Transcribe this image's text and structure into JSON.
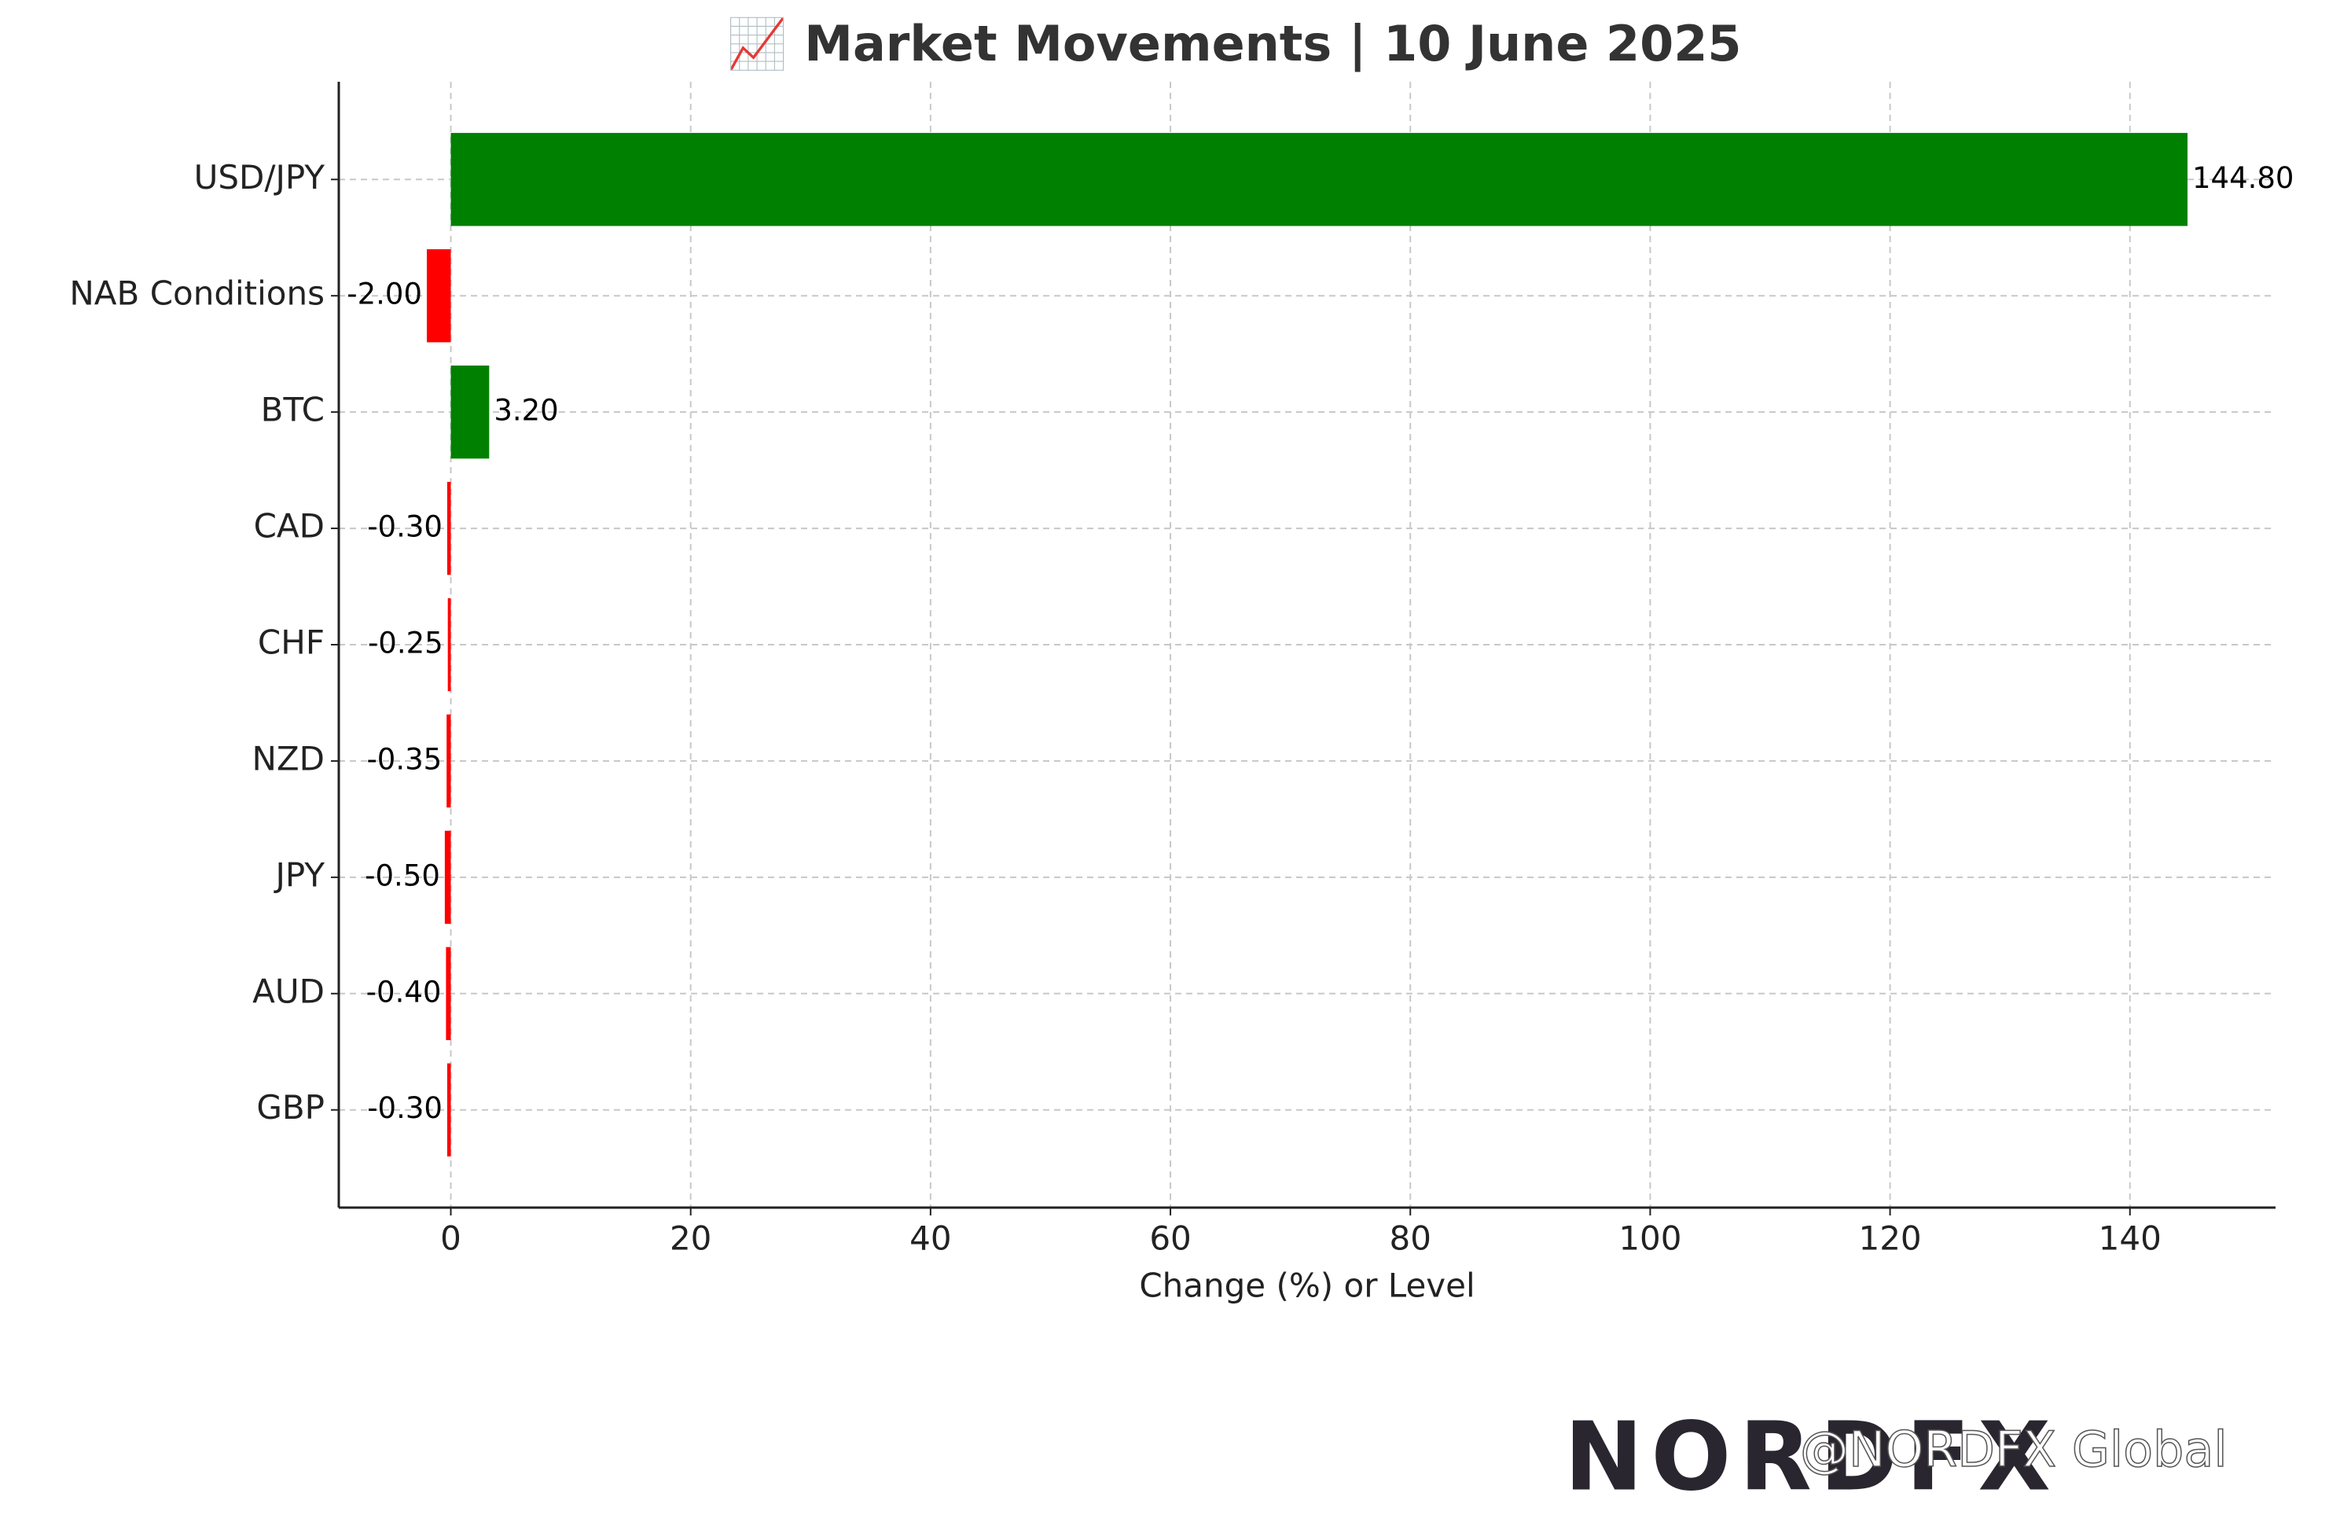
{
  "chart_data": {
    "type": "barh",
    "title": "📈 Market Movements | 10 June 2025",
    "categories": [
      "USD/JPY",
      "NAB Conditions",
      "BTC",
      "CAD",
      "CHF",
      "NZD",
      "JPY",
      "AUD",
      "GBP"
    ],
    "values": [
      144.8,
      -2.0,
      3.2,
      -0.3,
      -0.25,
      -0.35,
      -0.5,
      -0.4,
      -0.3
    ],
    "value_labels": [
      "144.80",
      "-2.00",
      "3.20",
      "-0.30",
      "-0.25",
      "-0.35",
      "-0.50",
      "-0.40",
      "-0.30"
    ],
    "colors": [
      "#008000",
      "#ff0000",
      "#008000",
      "#ff0000",
      "#ff0000",
      "#ff0000",
      "#ff0000",
      "#ff0000",
      "#ff0000"
    ],
    "xlabel": "Change (%) or Level",
    "xlim": [
      -9.34,
      152.14
    ],
    "xticks": [
      0,
      20,
      40,
      60,
      80,
      100,
      120,
      140
    ],
    "grid": true
  },
  "watermark": {
    "logo": "NORDFX",
    "handle": "@NORDFX Global"
  }
}
